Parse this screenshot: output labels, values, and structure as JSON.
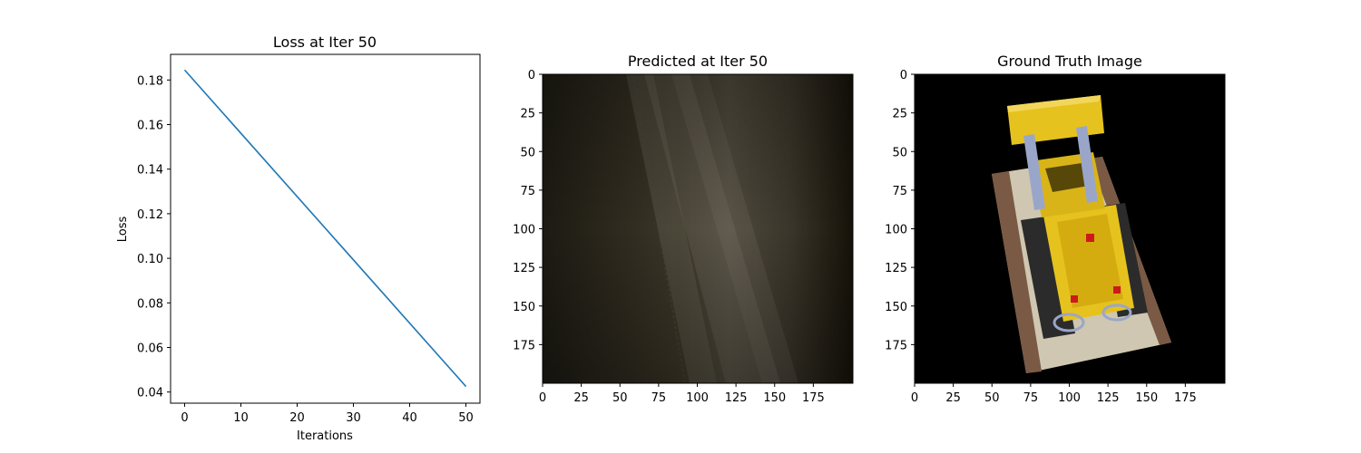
{
  "chart_data": [
    {
      "type": "line",
      "title": "Loss at Iter 50",
      "xlabel": "Iterations",
      "ylabel": "Loss",
      "xlim": [
        -2.5,
        52.5
      ],
      "ylim": [
        0.035,
        0.1915
      ],
      "xticks": [
        0,
        10,
        20,
        30,
        40,
        50
      ],
      "yticks": [
        0.04,
        0.06,
        0.08,
        0.1,
        0.12,
        0.14,
        0.16,
        0.18
      ],
      "ytick_labels": [
        "0.04",
        "0.06",
        "0.08",
        "0.10",
        "0.12",
        "0.14",
        "0.16",
        "0.18"
      ],
      "series": [
        {
          "x": [
            0,
            50
          ],
          "y": [
            0.1845,
            0.0425
          ],
          "color": "#1f77b4"
        }
      ],
      "grid": false
    },
    {
      "type": "image",
      "title": "Predicted at Iter 50",
      "xticks": [
        0,
        25,
        50,
        75,
        100,
        125,
        150,
        175
      ],
      "yticks": [
        0,
        25,
        50,
        75,
        100,
        125,
        150,
        175
      ],
      "extent": [
        200,
        200
      ],
      "description_colors": [
        "#1c1a12",
        "#3a3426",
        "#5b5548",
        "#25201a"
      ]
    },
    {
      "type": "image",
      "title": "Ground Truth Image",
      "xticks": [
        0,
        25,
        50,
        75,
        100,
        125,
        150,
        175
      ],
      "yticks": [
        0,
        25,
        50,
        75,
        100,
        125,
        150,
        175
      ],
      "extent": [
        200,
        200
      ],
      "description_colors": [
        "#000000",
        "#e6c21e",
        "#d9d2bf",
        "#7a5a44",
        "#2b2b2b",
        "#cc1a1a",
        "#9aa6c9"
      ]
    }
  ]
}
